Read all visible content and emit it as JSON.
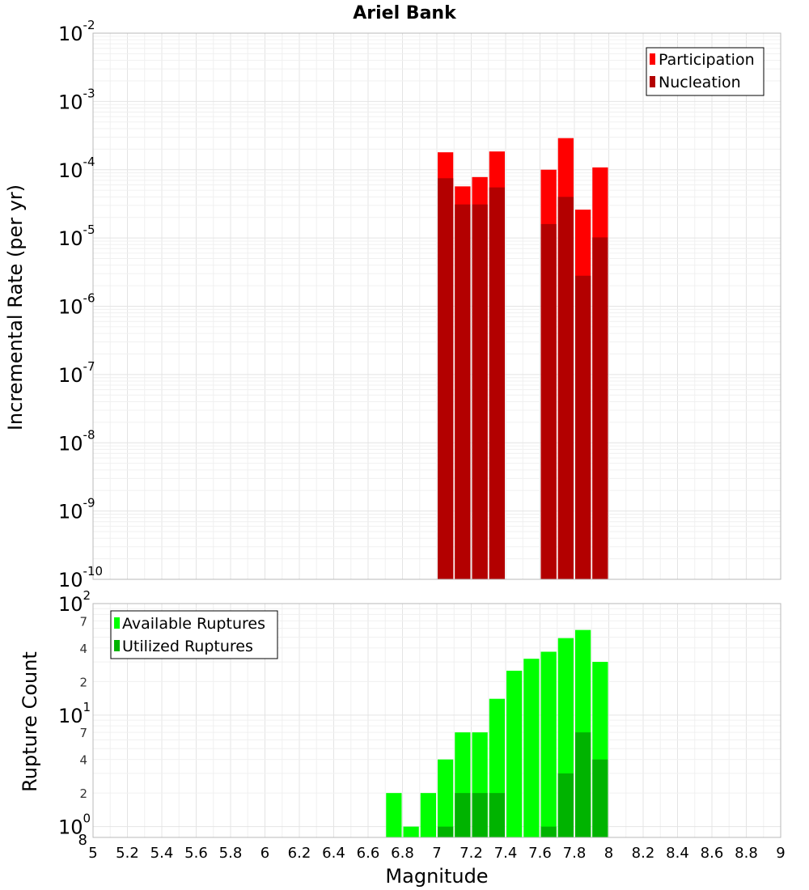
{
  "chart_data": [
    {
      "type": "bar",
      "title": "Ariel Bank",
      "xlabel": "Magnitude",
      "ylabel": "Incremental Rate (per yr)",
      "yscale": "log",
      "ylim_exp": [
        -10,
        -2
      ],
      "xlim": [
        5,
        9
      ],
      "bin_width": 0.1,
      "legend": {
        "position": "top-right",
        "entries": [
          "Participation",
          "Nucleation"
        ]
      },
      "colors": {
        "Participation": "#ff0000",
        "Nucleation": "#b30000"
      },
      "series": [
        {
          "name": "Participation",
          "x": [
            7.05,
            7.15,
            7.25,
            7.35,
            7.65,
            7.75,
            7.85,
            7.95
          ],
          "values": [
            0.00018,
            5.7e-05,
            7.8e-05,
            0.000185,
            0.0001,
            0.00029,
            2.6e-05,
            0.000108
          ]
        },
        {
          "name": "Nucleation",
          "x": [
            7.05,
            7.15,
            7.25,
            7.35,
            7.65,
            7.75,
            7.85,
            7.95
          ],
          "values": [
            7.5e-05,
            3.1e-05,
            3.1e-05,
            5.5e-05,
            1.6e-05,
            4e-05,
            2.8e-06,
            1.02e-05
          ]
        }
      ]
    },
    {
      "type": "bar",
      "xlabel": "Magnitude",
      "ylabel": "Rupture Count",
      "yscale": "log",
      "ylim": [
        0.8,
        100
      ],
      "xlim": [
        5,
        9
      ],
      "bin_width": 0.1,
      "legend": {
        "position": "top-left",
        "entries": [
          "Available Ruptures",
          "Utilized Ruptures"
        ]
      },
      "colors": {
        "Available Ruptures": "#00ff00",
        "Utilized Ruptures": "#00b300"
      },
      "series": [
        {
          "name": "Available Ruptures",
          "x": [
            6.75,
            6.85,
            6.95,
            7.05,
            7.15,
            7.25,
            7.35,
            7.45,
            7.55,
            7.65,
            7.75,
            7.85,
            7.95
          ],
          "values": [
            2,
            1,
            2,
            4,
            7,
            7,
            14,
            25,
            32,
            37,
            49,
            58,
            30
          ]
        },
        {
          "name": "Utilized Ruptures",
          "x": [
            7.05,
            7.15,
            7.25,
            7.35,
            7.65,
            7.75,
            7.85,
            7.95
          ],
          "values": [
            1,
            2,
            2,
            2,
            1,
            3,
            7,
            4
          ]
        }
      ]
    }
  ],
  "labels": {
    "top_tick_base": "10",
    "top_tick_exponents": [
      "-2",
      "-3",
      "-4",
      "-5",
      "-6",
      "-7",
      "-8",
      "-9",
      "-10"
    ],
    "bottom_major_base": "10",
    "bottom_major_exponents": [
      "2",
      "1",
      "0"
    ],
    "bottom_minor_ticks": [
      "7",
      "4",
      "2",
      "7",
      "4",
      "2",
      "8"
    ],
    "x_ticks": [
      "5",
      "5.2",
      "5.4",
      "5.6",
      "5.8",
      "6",
      "6.2",
      "6.4",
      "6.6",
      "6.8",
      "7",
      "7.2",
      "7.4",
      "7.6",
      "7.8",
      "8",
      "8.2",
      "8.4",
      "8.6",
      "8.8",
      "9"
    ]
  }
}
